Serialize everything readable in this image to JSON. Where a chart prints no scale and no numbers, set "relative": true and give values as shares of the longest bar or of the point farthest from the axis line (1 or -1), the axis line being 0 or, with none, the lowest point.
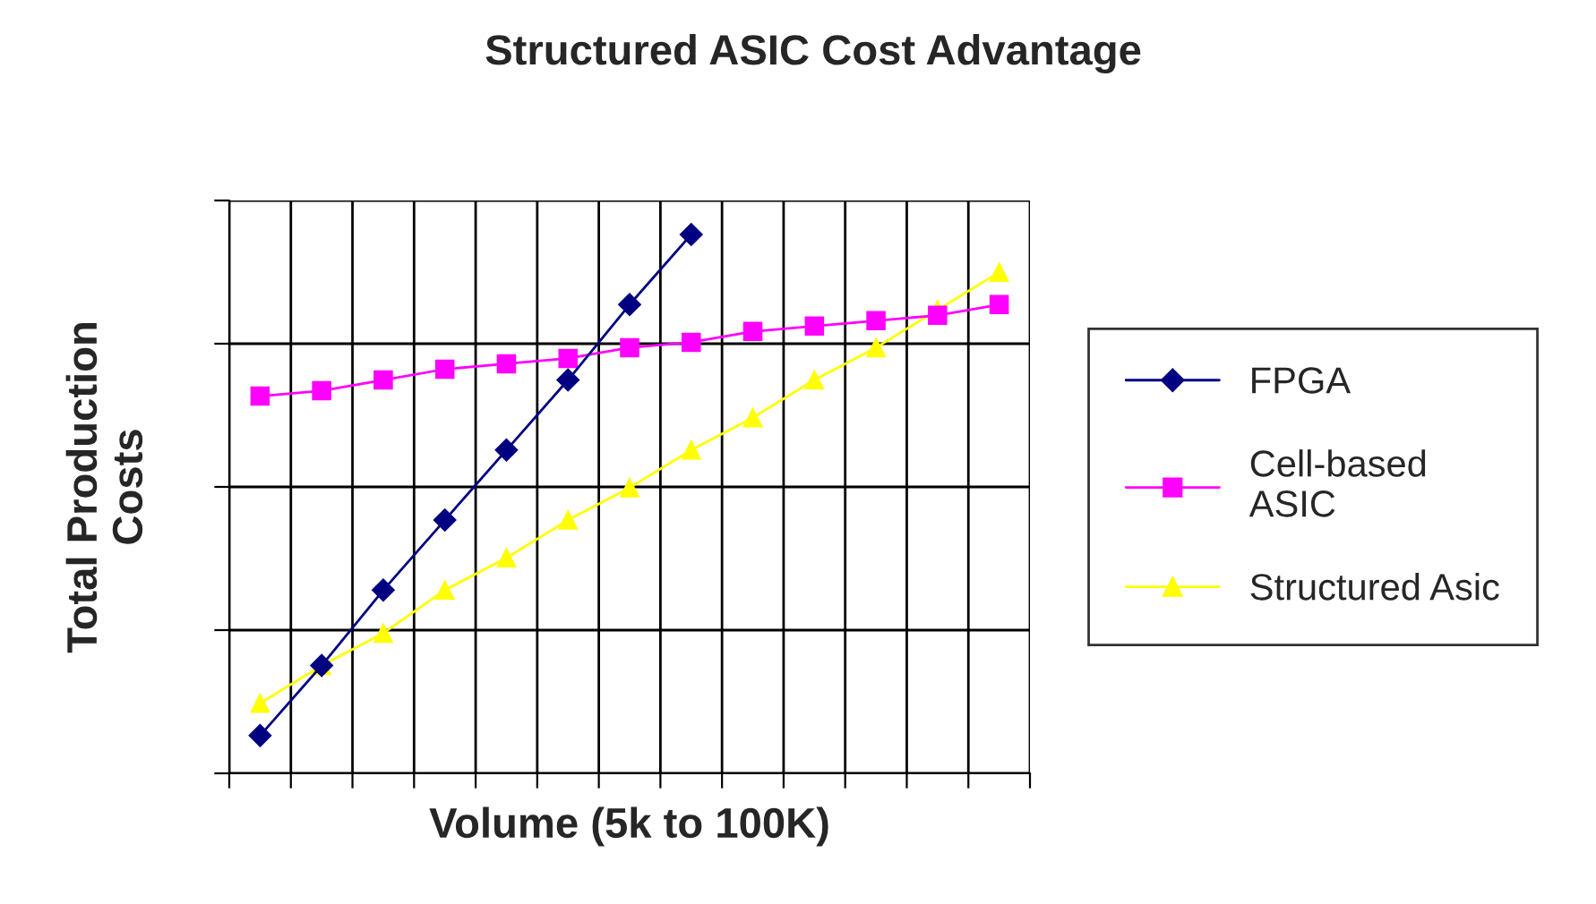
{
  "chart_data": {
    "type": "line",
    "title": "Structured ASIC Cost Advantage",
    "xlabel": "Volume (5k to 100K)",
    "ylabel": "Total Production\nCosts",
    "relative": true,
    "grid": true,
    "legend": "right",
    "categories": [
      null,
      null,
      null,
      null,
      null,
      null,
      null,
      null,
      null,
      null,
      null,
      null,
      null
    ],
    "series": [
      {
        "name": "FPGA",
        "color": "#000080",
        "marker": "diamond",
        "values": [
          0.07,
          0.2,
          0.34,
          0.47,
          0.6,
          0.73,
          0.87,
          1.0,
          null,
          null,
          null,
          null,
          null
        ]
      },
      {
        "name": "Cell-based\nASIC",
        "color": "#ff00ff",
        "marker": "square",
        "values": [
          0.7,
          0.71,
          0.73,
          0.75,
          0.76,
          0.77,
          0.79,
          0.8,
          0.82,
          0.83,
          0.84,
          0.85,
          0.87
        ]
      },
      {
        "name": "Structured Asic",
        "color": "#ffff00",
        "marker": "triangle",
        "values": [
          0.13,
          0.2,
          0.26,
          0.34,
          0.4,
          0.47,
          0.53,
          0.6,
          0.66,
          0.73,
          0.79,
          0.86,
          0.93
        ]
      }
    ]
  }
}
